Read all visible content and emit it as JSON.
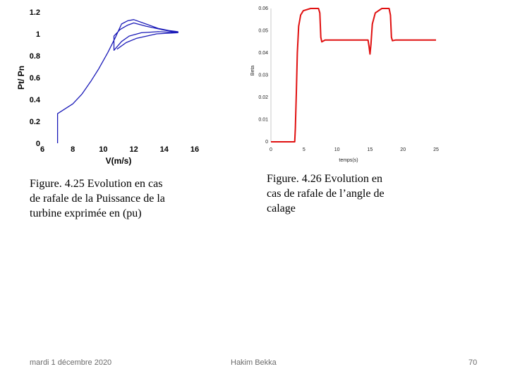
{
  "chart_data": [
    {
      "type": "line",
      "xlabel": "V(m/s)",
      "ylabel": "Pt/ Pn",
      "xlim": [
        6,
        16
      ],
      "ylim": [
        0,
        1.2
      ],
      "x_ticks": [
        "6",
        "8",
        "10",
        "12",
        "14",
        "16"
      ],
      "y_ticks": [
        "0",
        "0.2",
        "0.4",
        "0.6",
        "0.8",
        "1",
        "1.2"
      ],
      "grid": false,
      "color": "#1a1ab8",
      "series": [
        {
          "points": [
            [
              7.0,
              0.0
            ],
            [
              7.0,
              0.27
            ],
            [
              8.0,
              0.36
            ],
            [
              8.6,
              0.45
            ],
            [
              9.2,
              0.57
            ],
            [
              9.7,
              0.68
            ],
            [
              10.3,
              0.83
            ],
            [
              10.8,
              0.97
            ],
            [
              11.2,
              1.09
            ],
            [
              11.6,
              1.12
            ],
            [
              12.0,
              1.13
            ],
            [
              12.8,
              1.09
            ],
            [
              13.6,
              1.05
            ],
            [
              14.3,
              1.03
            ],
            [
              14.9,
              1.02
            ],
            [
              14.9,
              1.01
            ],
            [
              13.6,
              1.02
            ],
            [
              12.5,
              1.01
            ],
            [
              11.7,
              0.98
            ],
            [
              11.2,
              0.93
            ],
            [
              10.7,
              0.85
            ],
            [
              10.7,
              0.98
            ],
            [
              11.1,
              1.04
            ],
            [
              11.6,
              1.08
            ],
            [
              12.0,
              1.1
            ],
            [
              12.8,
              1.07
            ],
            [
              13.8,
              1.04
            ],
            [
              14.9,
              1.01
            ],
            [
              13.5,
              1.0
            ],
            [
              12.2,
              0.96
            ],
            [
              11.5,
              0.92
            ],
            [
              10.9,
              0.86
            ]
          ]
        }
      ]
    },
    {
      "type": "line",
      "xlabel": "temps(s)",
      "ylabel": "Beta",
      "xlim": [
        0,
        25
      ],
      "ylim": [
        0,
        0.06
      ],
      "x_ticks": [
        "0",
        "5",
        "10",
        "15",
        "20",
        "25"
      ],
      "y_ticks": [
        "0",
        "0.01",
        "0.02",
        "0.03",
        "0.04",
        "0.05",
        "0.06"
      ],
      "grid": false,
      "color": "#e01010",
      "series": [
        {
          "points": [
            [
              0,
              0
            ],
            [
              3.6,
              0
            ],
            [
              3.7,
              0.006
            ],
            [
              3.85,
              0.022
            ],
            [
              4.0,
              0.04
            ],
            [
              4.2,
              0.052
            ],
            [
              4.5,
              0.057
            ],
            [
              4.9,
              0.059
            ],
            [
              6.0,
              0.06
            ],
            [
              7.2,
              0.06
            ],
            [
              7.4,
              0.058
            ],
            [
              7.55,
              0.047
            ],
            [
              7.7,
              0.045
            ],
            [
              8.2,
              0.0458
            ],
            [
              14.7,
              0.0458
            ],
            [
              14.85,
              0.043
            ],
            [
              15.0,
              0.0395
            ],
            [
              15.15,
              0.044
            ],
            [
              15.35,
              0.053
            ],
            [
              15.8,
              0.058
            ],
            [
              16.8,
              0.06
            ],
            [
              17.9,
              0.06
            ],
            [
              18.1,
              0.057
            ],
            [
              18.25,
              0.047
            ],
            [
              18.4,
              0.0455
            ],
            [
              18.9,
              0.0458
            ],
            [
              25,
              0.0458
            ]
          ]
        }
      ]
    }
  ],
  "captions": {
    "fig1": [
      "Figure. 4.25   Evolution en cas",
      "de rafale de la Puissance de la",
      "turbine  exprimée en (pu)"
    ],
    "fig2": [
      "Figure.  4.26   Evolution  en",
      "cas  de  rafale  de  l’angle  de",
      "calage"
    ]
  },
  "footer": {
    "date": "mardi 1 décembre 2020",
    "author": "Hakim Bekka",
    "page": "70"
  }
}
